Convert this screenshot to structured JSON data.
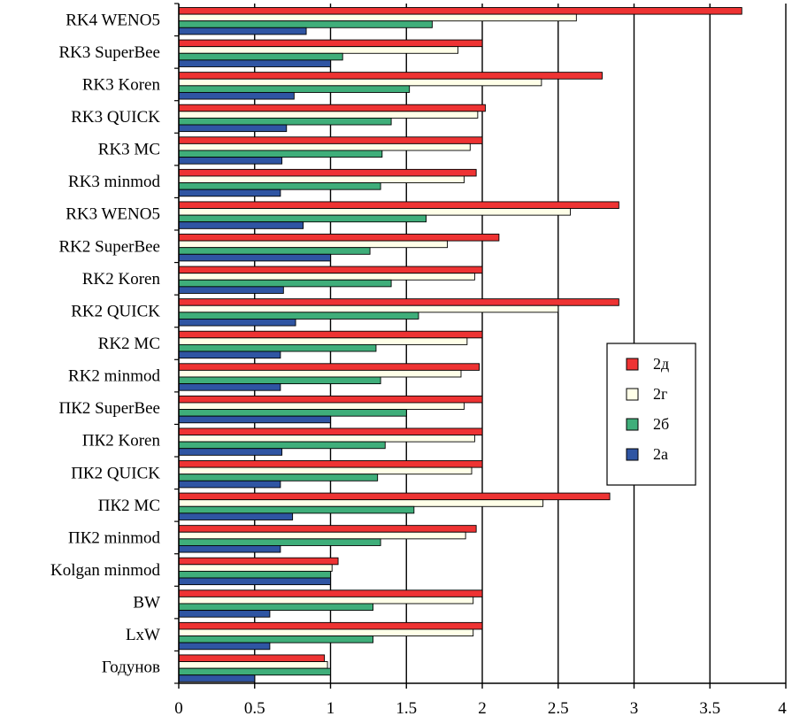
{
  "chart_data": {
    "type": "bar",
    "orientation": "horizontal",
    "categories": [
      "RK4 WENO5",
      "RK3 SuperBee",
      "RK3 Koren",
      "RK3 QUICK",
      "RK3 MC",
      "RK3 minmod",
      "RK3 WENO5",
      "RK2 SuperBee",
      "RK2 Koren",
      "RK2 QUICK",
      "RK2 MC",
      "RK2 minmod",
      "ПК2 SuperBee",
      "ПК2 Koren",
      "ПК2 QUICK",
      "ПК2 MC",
      "ПК2 minmod",
      "Kolgan minmod",
      "BW",
      "LxW",
      "Годунов"
    ],
    "series": [
      {
        "name": "2д",
        "color": "#ee3333",
        "values": [
          3.71,
          2.0,
          2.79,
          2.02,
          2.0,
          1.96,
          2.9,
          2.11,
          2.0,
          2.9,
          2.0,
          1.98,
          2.0,
          2.0,
          2.0,
          2.84,
          1.96,
          1.05,
          2.0,
          2.0,
          0.96
        ]
      },
      {
        "name": "2г",
        "color": "#ffffe8",
        "values": [
          2.62,
          1.84,
          2.39,
          1.97,
          1.92,
          1.88,
          2.58,
          1.77,
          1.95,
          2.5,
          1.9,
          1.86,
          1.88,
          1.95,
          1.93,
          2.4,
          1.89,
          1.01,
          1.94,
          1.94,
          0.98
        ]
      },
      {
        "name": "2б",
        "color": "#3fae7a",
        "values": [
          1.67,
          1.08,
          1.52,
          1.4,
          1.34,
          1.33,
          1.63,
          1.26,
          1.4,
          1.58,
          1.3,
          1.33,
          1.5,
          1.36,
          1.31,
          1.55,
          1.33,
          1.0,
          1.28,
          1.28,
          1.0
        ]
      },
      {
        "name": "2а",
        "color": "#2f55a3",
        "values": [
          0.84,
          1.0,
          0.76,
          0.71,
          0.68,
          0.67,
          0.82,
          1.0,
          0.69,
          0.77,
          0.67,
          0.67,
          1.0,
          0.68,
          0.67,
          0.75,
          0.67,
          1.0,
          0.6,
          0.6,
          0.5
        ]
      }
    ],
    "xlim": [
      0,
      4
    ],
    "xticks": [
      0,
      0.5,
      1,
      1.5,
      2,
      2.5,
      3,
      3.5,
      4
    ],
    "xtick_labels": [
      "0",
      "0.5",
      "1",
      "1.5",
      "2",
      "2.5",
      "3",
      "3.5",
      "4"
    ],
    "grid": "vertical major",
    "legend": {
      "placement": "right-center",
      "order": [
        "2д",
        "2г",
        "2б",
        "2а"
      ]
    },
    "title": "",
    "xlabel": "",
    "ylabel": ""
  }
}
